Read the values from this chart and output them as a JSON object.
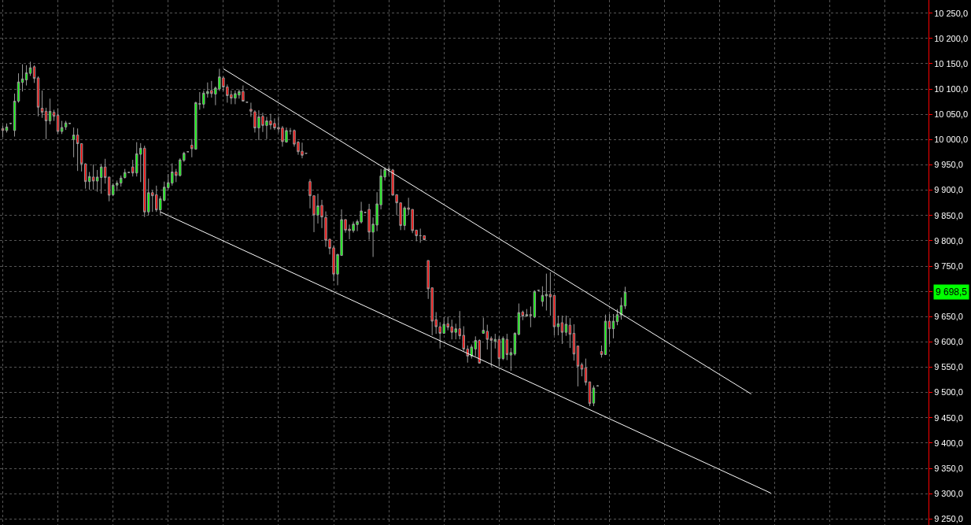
{
  "chart_data": {
    "type": "candlestick",
    "grid": true,
    "tick_labels": "y",
    "categories": [
      null,
      null,
      null,
      null,
      null,
      null,
      null,
      null,
      null,
      null,
      null,
      null,
      null,
      null,
      null,
      null,
      null,
      null,
      null,
      null,
      null,
      null,
      null,
      null,
      null,
      null,
      null,
      null,
      null,
      null,
      null,
      null,
      null,
      null,
      null,
      null,
      null,
      null,
      null,
      null,
      null,
      null,
      null,
      null,
      null,
      null,
      null,
      null,
      null,
      null,
      null,
      null,
      null,
      null,
      null,
      null,
      null,
      null,
      null,
      null,
      null,
      null,
      null,
      null,
      null,
      null,
      null,
      null,
      null,
      null,
      null,
      null,
      null,
      null,
      null,
      null,
      null,
      null,
      null,
      null,
      null,
      null,
      null,
      null,
      null,
      null,
      null,
      null,
      null,
      null,
      null,
      null,
      null,
      null,
      null,
      null,
      null,
      null,
      null,
      null,
      null,
      null,
      null,
      null,
      null,
      null,
      null,
      null,
      null,
      null,
      null,
      null,
      null,
      null,
      null,
      null,
      null,
      null,
      null,
      null,
      null,
      null,
      null,
      null,
      null,
      null,
      null,
      null,
      null,
      null,
      null,
      null,
      null,
      null,
      null,
      null,
      null,
      null,
      null,
      null,
      null,
      null,
      null,
      null,
      null,
      null,
      null,
      null,
      null,
      null,
      null,
      null,
      null,
      null,
      null,
      null,
      null,
      null,
      null,
      null,
      null,
      null,
      null,
      null,
      null,
      null,
      null,
      null,
      null,
      null,
      null,
      null,
      null,
      null,
      null,
      null,
      null,
      null,
      null,
      null,
      null,
      null,
      null,
      null,
      null,
      null,
      null,
      null,
      null,
      null,
      null,
      null,
      null,
      null,
      null,
      null,
      null,
      null,
      null,
      null,
      null,
      null,
      null,
      null,
      null,
      null,
      null,
      null,
      null,
      null,
      null,
      null,
      null,
      null,
      null,
      null,
      null,
      null,
      null,
      null,
      null,
      null,
      null,
      null,
      null,
      null,
      null,
      null,
      null,
      null,
      null,
      null,
      null,
      null,
      null,
      null
    ],
    "ohlc": [
      [
        10022,
        10028,
        10005,
        10018
      ],
      [
        10018,
        10032,
        10014,
        10025
      ],
      [
        10032,
        10033,
        10031,
        10032
      ],
      [
        10018,
        10091,
        10006,
        10076
      ],
      [
        10076,
        10131,
        10073,
        10114
      ],
      [
        10113,
        10149,
        10095,
        10120
      ],
      [
        10118,
        10147,
        10107,
        10132
      ],
      [
        10131,
        10154,
        10126,
        10142
      ],
      [
        10144,
        10147,
        10112,
        10121
      ],
      [
        10122,
        10125,
        10046,
        10064
      ],
      [
        10062,
        10097,
        10043,
        10054
      ],
      [
        10056,
        10063,
        10001,
        10037
      ],
      [
        10037,
        10081,
        10030,
        10056
      ],
      [
        10054,
        10059,
        10037,
        10046
      ],
      [
        10048,
        10062,
        10011,
        10016
      ],
      [
        10016,
        10037,
        10011,
        10024
      ],
      [
        10025,
        10037,
        10019,
        10033
      ],
      [
        10032,
        10033,
        10031,
        10032
      ],
      [
        10000,
        10024,
        9965,
        10009
      ],
      [
        10009,
        10022,
        9938,
        9992
      ],
      [
        9992,
        9992,
        9937,
        9952
      ],
      [
        9952,
        9953,
        9903,
        9917
      ],
      [
        9917,
        9936,
        9901,
        9927
      ],
      [
        9926,
        9951,
        9901,
        9918
      ],
      [
        9918,
        9940,
        9897,
        9926
      ],
      [
        9925,
        9952,
        9893,
        9946
      ],
      [
        9946,
        9962,
        9913,
        9925
      ],
      [
        9926,
        9926,
        9878,
        9890
      ],
      [
        9891,
        9914,
        9888,
        9910
      ],
      [
        9910,
        9919,
        9898,
        9914
      ],
      [
        9914,
        9929,
        9907,
        9924
      ],
      [
        9925,
        9942,
        9923,
        9935
      ],
      [
        9935,
        9936,
        9934,
        9935
      ],
      [
        9946,
        9960,
        9927,
        9934
      ],
      [
        9934,
        9995,
        9927,
        9972
      ],
      [
        9971,
        9993,
        9916,
        9983
      ],
      [
        9983,
        9988,
        9847,
        9857
      ],
      [
        9857,
        9923,
        9850,
        9895
      ],
      [
        9895,
        9900,
        9857,
        9889
      ],
      [
        9891,
        9909,
        9857,
        9861
      ],
      [
        9861,
        9888,
        9850,
        9883
      ],
      [
        9880,
        9917,
        9878,
        9906
      ],
      [
        9905,
        9932,
        9901,
        9915
      ],
      [
        9914,
        9953,
        9909,
        9936
      ],
      [
        9936,
        9942,
        9916,
        9929
      ],
      [
        9929,
        9963,
        9927,
        9960
      ],
      [
        9959,
        9976,
        9956,
        9973
      ],
      [
        9976,
        9977,
        9975,
        9976
      ],
      [
        9989,
        10001,
        9965,
        9982
      ],
      [
        9981,
        10075,
        9980,
        10073
      ],
      [
        10070,
        10094,
        10059,
        10071
      ],
      [
        10070,
        10097,
        10062,
        10092
      ],
      [
        10091,
        10113,
        10083,
        10095
      ],
      [
        10097,
        10116,
        10083,
        10091
      ],
      [
        10090,
        10105,
        10068,
        10102
      ],
      [
        10100,
        10140,
        10096,
        10124
      ],
      [
        10122,
        10125,
        10096,
        10104
      ],
      [
        10104,
        10109,
        10073,
        10087
      ],
      [
        10089,
        10097,
        10070,
        10082
      ],
      [
        10082,
        10097,
        10070,
        10091
      ],
      [
        10088,
        10099,
        10081,
        10095
      ],
      [
        10095,
        10107,
        10076,
        10076
      ],
      [
        10074,
        10075,
        10073,
        10074
      ],
      [
        10060,
        10073,
        10045,
        10056
      ],
      [
        10055,
        10058,
        10014,
        10023
      ],
      [
        10023,
        10058,
        9999,
        10045
      ],
      [
        10046,
        10053,
        10015,
        10028
      ],
      [
        10028,
        10045,
        10001,
        10037
      ],
      [
        10037,
        10051,
        10020,
        10029
      ],
      [
        10032,
        10042,
        10019,
        10023
      ],
      [
        10024,
        10046,
        10014,
        10021
      ],
      [
        10023,
        10027,
        9986,
        9996
      ],
      [
        9995,
        10024,
        9994,
        10018
      ],
      [
        10017,
        10023,
        10010,
        10017
      ],
      [
        10018,
        10020,
        9986,
        9991
      ],
      [
        9995,
        9997,
        9970,
        9976
      ],
      [
        9977,
        9994,
        9963,
        9969
      ],
      [
        9973,
        9974,
        9972,
        9973
      ],
      [
        9917,
        9922,
        9864,
        9889
      ],
      [
        9889,
        9889,
        9817,
        9851
      ],
      [
        9851,
        9893,
        9834,
        9869
      ],
      [
        9870,
        9881,
        9825,
        9847
      ],
      [
        9846,
        9858,
        9788,
        9801
      ],
      [
        9803,
        9804,
        9773,
        9785
      ],
      [
        9786,
        9791,
        9720,
        9734
      ],
      [
        9734,
        9774,
        9712,
        9773
      ],
      [
        9771,
        9862,
        9770,
        9842
      ],
      [
        9842,
        9842,
        9816,
        9821
      ],
      [
        9823,
        9832,
        9803,
        9820
      ],
      [
        9820,
        9838,
        9816,
        9833
      ],
      [
        9832,
        9842,
        9819,
        9838
      ],
      [
        9837,
        9877,
        9834,
        9859
      ],
      [
        9856,
        9857,
        9855,
        9856
      ],
      [
        9862,
        9873,
        9802,
        9817
      ],
      [
        9817,
        9846,
        9768,
        9833
      ],
      [
        9831,
        9896,
        9819,
        9873
      ],
      [
        9871,
        9942,
        9862,
        9928
      ],
      [
        9926,
        9945,
        9919,
        9941
      ],
      [
        9942,
        9947,
        9929,
        9940
      ],
      [
        9940,
        9942,
        9890,
        9890
      ],
      [
        9891,
        9892,
        9851,
        9875
      ],
      [
        9875,
        9875,
        9821,
        9830
      ],
      [
        9830,
        9868,
        9821,
        9865
      ],
      [
        9865,
        9885,
        9851,
        9862
      ],
      [
        9862,
        9862,
        9815,
        9820
      ],
      [
        9821,
        9821,
        9799,
        9810
      ],
      [
        9810,
        9824,
        9796,
        9810
      ],
      [
        9810,
        9810,
        9801,
        9802
      ],
      [
        9761,
        9761,
        9685,
        9705
      ],
      [
        9707,
        9707,
        9613,
        9641
      ],
      [
        9644,
        9659,
        9616,
        9630
      ],
      [
        9630,
        9639,
        9587,
        9617
      ],
      [
        9617,
        9649,
        9616,
        9635
      ],
      [
        9636,
        9650,
        9623,
        9629
      ],
      [
        9630,
        9644,
        9605,
        9619
      ],
      [
        9619,
        9636,
        9605,
        9626
      ],
      [
        9626,
        9661,
        9605,
        9612
      ],
      [
        9613,
        9631,
        9582,
        9586
      ],
      [
        9586,
        9593,
        9559,
        9572
      ],
      [
        9572,
        9595,
        9567,
        9590
      ],
      [
        9586,
        9611,
        9572,
        9603
      ],
      [
        9603,
        9605,
        9557,
        9558
      ],
      [
        9617,
        9648,
        9616,
        9623
      ],
      [
        9621,
        9634,
        9585,
        9605
      ],
      [
        9607,
        9611,
        9551,
        9603
      ],
      [
        9601,
        9616,
        9587,
        9605
      ],
      [
        9605,
        9611,
        9551,
        9567
      ],
      [
        9567,
        9611,
        9564,
        9607
      ],
      [
        9605,
        9616,
        9564,
        9575
      ],
      [
        9574,
        9588,
        9543,
        9579
      ],
      [
        9576,
        9619,
        9573,
        9617
      ],
      [
        9615,
        9676,
        9613,
        9658
      ],
      [
        9659,
        9662,
        9643,
        9651
      ],
      [
        9651,
        9665,
        9650,
        9654
      ],
      [
        9654,
        9670,
        9629,
        9652
      ],
      [
        9649,
        9702,
        9647,
        9700
      ],
      [
        9702,
        9703,
        9701,
        9702
      ],
      [
        9680,
        9710,
        9670,
        9692
      ],
      [
        9691,
        9735,
        9662,
        9694
      ],
      [
        9694,
        9738,
        9652,
        9689
      ],
      [
        9692,
        9692,
        9613,
        9630
      ],
      [
        9630,
        9652,
        9613,
        9636
      ],
      [
        9638,
        9652,
        9596,
        9619
      ],
      [
        9619,
        9652,
        9612,
        9635
      ],
      [
        9633,
        9647,
        9588,
        9615
      ],
      [
        9617,
        9635,
        9563,
        9576
      ],
      [
        9592,
        9592,
        9512,
        9552
      ],
      [
        9555,
        9559,
        9532,
        9546
      ],
      [
        9549,
        9567,
        9514,
        9520
      ],
      [
        9521,
        9521,
        9473,
        9478
      ],
      [
        9479,
        9514,
        9473,
        9509
      ],
      [
        9513,
        9514,
        9512,
        9513
      ],
      [
        9581,
        9593,
        9569,
        9575
      ],
      [
        9575,
        9654,
        9574,
        9641
      ],
      [
        9641,
        9655,
        9595,
        9626
      ],
      [
        9626,
        9655,
        9607,
        9641
      ],
      [
        9640,
        9665,
        9633,
        9654
      ],
      [
        9653,
        9688,
        9644,
        9672
      ],
      [
        9671,
        9709,
        9665,
        9698.5
      ],
      null,
      null,
      null,
      null,
      null,
      null,
      null,
      null,
      null,
      null,
      null,
      null,
      null,
      null,
      null,
      null,
      null,
      null,
      null,
      null,
      null,
      null,
      null,
      null,
      null,
      null,
      null,
      null,
      null,
      null,
      null,
      null,
      null,
      null,
      null,
      null,
      null,
      null,
      null,
      null,
      null,
      null,
      null,
      null,
      null,
      null,
      null,
      null,
      null,
      null,
      null,
      null,
      null,
      null,
      null,
      null,
      null,
      null,
      null,
      null,
      null,
      null,
      null,
      null,
      null,
      null,
      null,
      null,
      null,
      null,
      null,
      null,
      null,
      null,
      null,
      null,
      null
    ],
    "series": [
      {
        "type": "line",
        "color": "#ffffff",
        "values": [
          null,
          null,
          null,
          null,
          null,
          null,
          null,
          null,
          null,
          null,
          null,
          null,
          null,
          null,
          null,
          null,
          null,
          null,
          null,
          null,
          null,
          null,
          null,
          null,
          null,
          null,
          null,
          null,
          null,
          null,
          null,
          null,
          null,
          null,
          null,
          null,
          null,
          null,
          null,
          null,
          null,
          null,
          null,
          null,
          null,
          null,
          null,
          null,
          null,
          null,
          null,
          null,
          null,
          null,
          null,
          null,
          10140,
          null,
          null,
          null,
          null,
          null,
          null,
          null,
          null,
          null,
          null,
          null,
          null,
          null,
          null,
          null,
          null,
          null,
          null,
          null,
          null,
          null,
          null,
          null,
          null,
          null,
          null,
          null,
          null,
          null,
          null,
          null,
          null,
          null,
          null,
          null,
          null,
          null,
          null,
          null,
          null,
          null,
          null,
          null,
          null,
          null,
          null,
          null,
          null,
          null,
          null,
          null,
          null,
          null,
          null,
          null,
          null,
          null,
          null,
          null,
          null,
          null,
          null,
          null,
          null,
          null,
          null,
          null,
          null,
          null,
          null,
          null,
          null,
          null,
          null,
          null,
          null,
          null,
          null,
          null,
          null,
          null,
          null,
          null,
          null,
          null,
          null,
          null,
          null,
          null,
          null,
          null,
          null,
          null,
          null,
          null,
          null,
          null,
          null,
          null,
          null,
          null,
          null,
          null,
          null,
          null,
          null,
          null,
          null,
          null,
          null,
          null,
          null,
          null,
          null,
          null,
          null,
          null,
          null,
          null,
          null,
          null,
          null,
          null,
          null,
          null,
          null,
          null,
          null,
          null,
          null,
          null,
          null,
          null,
          9497,
          null,
          null,
          null,
          null,
          null,
          null,
          null,
          null,
          null,
          null,
          null,
          null,
          null,
          null,
          null,
          null,
          null,
          null,
          null,
          null,
          null,
          null,
          null,
          null,
          null,
          null,
          null,
          null,
          null,
          null,
          null,
          null,
          null,
          null,
          null,
          null,
          null,
          null,
          null,
          null,
          null,
          null,
          null,
          null,
          null
        ]
      },
      {
        "type": "line",
        "color": "#ffffff",
        "values": [
          null,
          null,
          null,
          null,
          null,
          null,
          null,
          null,
          null,
          null,
          null,
          null,
          null,
          null,
          null,
          null,
          null,
          null,
          null,
          null,
          null,
          null,
          null,
          null,
          null,
          null,
          null,
          null,
          null,
          null,
          null,
          null,
          null,
          null,
          null,
          null,
          null,
          null,
          null,
          null,
          9857,
          null,
          null,
          null,
          null,
          null,
          null,
          null,
          null,
          null,
          null,
          null,
          null,
          null,
          null,
          null,
          null,
          null,
          null,
          null,
          null,
          null,
          null,
          null,
          null,
          null,
          null,
          null,
          null,
          null,
          null,
          null,
          null,
          null,
          null,
          null,
          null,
          null,
          null,
          null,
          null,
          null,
          null,
          null,
          null,
          null,
          null,
          null,
          null,
          null,
          null,
          null,
          null,
          null,
          null,
          null,
          null,
          null,
          null,
          null,
          null,
          null,
          null,
          null,
          null,
          null,
          null,
          null,
          null,
          null,
          null,
          null,
          null,
          null,
          null,
          null,
          null,
          null,
          null,
          null,
          null,
          null,
          null,
          null,
          null,
          null,
          null,
          null,
          null,
          null,
          null,
          null,
          null,
          null,
          null,
          null,
          null,
          null,
          null,
          null,
          null,
          null,
          null,
          null,
          null,
          null,
          null,
          null,
          null,
          null,
          null,
          null,
          null,
          null,
          null,
          null,
          null,
          null,
          null,
          null,
          null,
          null,
          null,
          null,
          null,
          null,
          null,
          null,
          null,
          null,
          null,
          null,
          null,
          null,
          null,
          null,
          null,
          null,
          null,
          null,
          null,
          null,
          null,
          null,
          null,
          null,
          null,
          null,
          null,
          null,
          null,
          null,
          null,
          null,
          null,
          9301,
          null,
          null,
          null,
          null,
          null,
          null,
          null,
          null,
          null,
          null,
          null,
          null,
          null,
          null,
          null,
          null,
          null,
          null,
          null,
          null,
          null,
          null,
          null,
          null,
          null,
          null,
          null,
          null,
          null,
          null,
          null,
          null,
          null,
          null,
          null,
          null,
          null,
          null,
          null,
          null
        ]
      }
    ],
    "ylim": [
      9238,
      10276
    ],
    "yticks": [
      {
        "value": 9250,
        "label": "9 250,0"
      },
      {
        "value": 9300,
        "label": "9 300,0"
      },
      {
        "value": 9350,
        "label": "9 350,0"
      },
      {
        "value": 9400,
        "label": "9 400,0"
      },
      {
        "value": 9450,
        "label": "9 450,0"
      },
      {
        "value": 9500,
        "label": "9 500,0"
      },
      {
        "value": 9550,
        "label": "9 550,0"
      },
      {
        "value": 9600,
        "label": "9 600,0"
      },
      {
        "value": 9650,
        "label": "9 650,0"
      },
      {
        "value": 9700,
        "label": null
      },
      {
        "value": 9750,
        "label": "9 750,0"
      },
      {
        "value": 9800,
        "label": "9 800,0"
      },
      {
        "value": 9850,
        "label": "9 850,0"
      },
      {
        "value": 9900,
        "label": "9 900,0"
      },
      {
        "value": 9950,
        "label": "9 950,0"
      },
      {
        "value": 10000,
        "label": "10 000,0"
      },
      {
        "value": 10050,
        "label": "10 050,0"
      },
      {
        "value": 10100,
        "label": "10 100,0"
      },
      {
        "value": 10150,
        "label": "10 150,0"
      },
      {
        "value": 10200,
        "label": "10 200,0"
      },
      {
        "value": 10250,
        "label": "10 250,0"
      }
    ],
    "annotations": [
      "9 698,5"
    ]
  }
}
